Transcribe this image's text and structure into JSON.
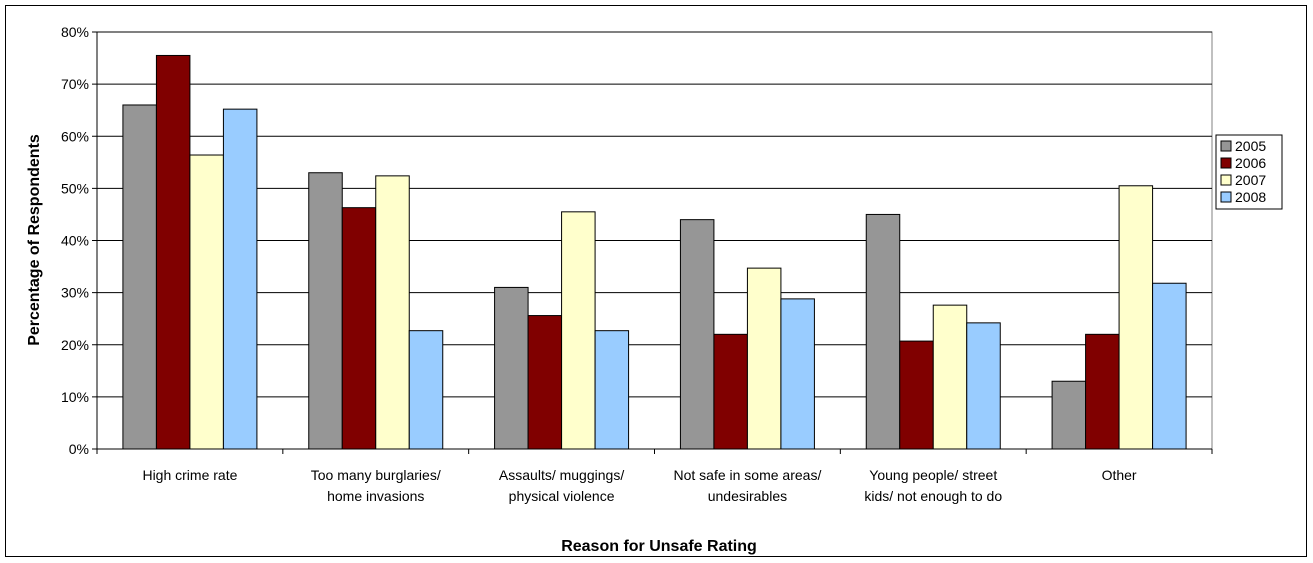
{
  "chart_data": {
    "type": "bar",
    "xlabel": "Reason for Unsafe Rating",
    "ylabel": "Percentage of Respondents",
    "ylim": [
      0,
      80
    ],
    "yticks": [
      0,
      10,
      20,
      30,
      40,
      50,
      60,
      70,
      80
    ],
    "ytick_labels": [
      "0%",
      "10%",
      "20%",
      "30%",
      "40%",
      "50%",
      "60%",
      "70%",
      "80%"
    ],
    "grid": true,
    "legend_position": "right",
    "categories": [
      [
        "High crime rate"
      ],
      [
        "Too many burglaries/",
        "home invasions"
      ],
      [
        "Assaults/ muggings/",
        "physical violence"
      ],
      [
        "Not safe in some areas/",
        "undesirables"
      ],
      [
        "Young people/ street",
        "kids/ not enough to do"
      ],
      [
        "Other"
      ]
    ],
    "series": [
      {
        "name": "2005",
        "color": "#969696",
        "values": [
          66,
          53,
          31,
          44,
          45,
          13
        ]
      },
      {
        "name": "2006",
        "color": "#800000",
        "values": [
          75.5,
          46.3,
          25.6,
          22,
          20.7,
          22
        ]
      },
      {
        "name": "2007",
        "color": "#FFFFCC",
        "values": [
          56.4,
          52.4,
          45.5,
          34.7,
          27.6,
          50.5
        ]
      },
      {
        "name": "2008",
        "color": "#99CCFF",
        "values": [
          65.2,
          22.7,
          22.7,
          28.8,
          24.2,
          31.8
        ]
      }
    ]
  }
}
